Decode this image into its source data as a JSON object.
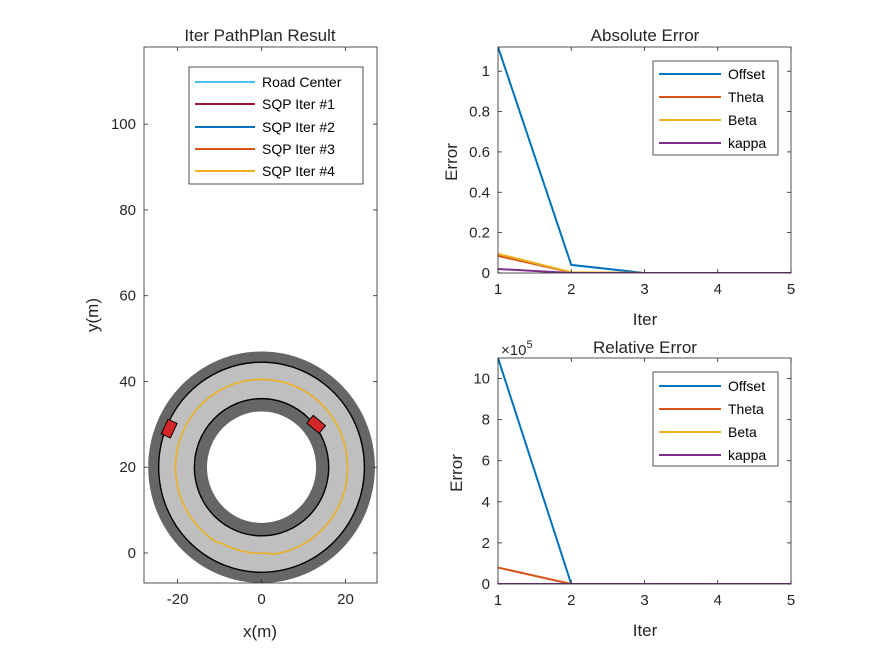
{
  "colors": {
    "road_center": "#4DBEEE",
    "sqp_iter1": "#A2142F",
    "offset": "#0072BD",
    "theta": "#D95319",
    "beta": "#EDB120",
    "kappa": "#7E2F8E",
    "road_outer_ring": "#666666",
    "road_surface": "#BFBFBF",
    "vehicle": "#D62728"
  },
  "chart_data": [
    {
      "type": "line",
      "title": "Iter PathPlan Result",
      "xlabel": "x(m)",
      "ylabel": "y(m)",
      "xlim": [
        -28,
        27.5
      ],
      "ylim": [
        -7,
        118
      ],
      "xticks": [
        -20,
        0,
        20
      ],
      "yticks": [
        0,
        20,
        40,
        60,
        80,
        100
      ],
      "xtick_labels": [
        "-20",
        "0",
        "20"
      ],
      "ytick_labels": [
        "0",
        "20",
        "40",
        "60",
        "80",
        "100"
      ],
      "grid": false,
      "legend": "top-right",
      "legend_labels": [
        "Road Center",
        "SQP Iter #1",
        "SQP Iter #2",
        "SQP Iter #3",
        "SQP Iter #4"
      ],
      "ring_track": {
        "center": [
          0,
          20
        ],
        "outer_wall_radius": 27,
        "outer_lane_radius": 24.5,
        "inner_lane_radius": 16,
        "inner_wall_radius": 13,
        "planned_path_radius": 20.5
      },
      "vehicles": [
        {
          "x": -22,
          "y": 29,
          "heading_deg": 65
        },
        {
          "x": 13,
          "y": 30,
          "heading_deg": -40
        }
      ]
    },
    {
      "type": "line",
      "title": "Absolute Error",
      "xlabel": "Iter",
      "ylabel": "Error",
      "xlim": [
        1,
        5
      ],
      "ylim": [
        0,
        1.12
      ],
      "xticks": [
        1,
        2,
        3,
        4,
        5
      ],
      "yticks": [
        0,
        0.2,
        0.4,
        0.6,
        0.8,
        1
      ],
      "xtick_labels": [
        "1",
        "2",
        "3",
        "4",
        "5"
      ],
      "ytick_labels": [
        "0",
        "0.2",
        "0.4",
        "0.6",
        "0.8",
        "1"
      ],
      "grid": false,
      "legend": "top-right",
      "x": [
        1,
        2,
        3,
        4,
        5
      ],
      "series": [
        {
          "name": "Offset",
          "values": [
            1.12,
            0.04,
            0.0,
            0.0,
            0.0
          ]
        },
        {
          "name": "Theta",
          "values": [
            0.085,
            0.003,
            0.0,
            0.0,
            0.0
          ]
        },
        {
          "name": "Beta",
          "values": [
            0.095,
            0.004,
            0.0,
            0.0,
            0.0
          ]
        },
        {
          "name": "kappa",
          "values": [
            0.02,
            0.0,
            0.0,
            0.0,
            0.0
          ]
        }
      ]
    },
    {
      "type": "line",
      "title": "Relative Error",
      "xlabel": "Iter",
      "ylabel": "Error",
      "exponent_label": "×10",
      "exponent_power": "5",
      "xlim": [
        1,
        5
      ],
      "ylim": [
        0,
        11
      ],
      "xticks": [
        1,
        2,
        3,
        4,
        5
      ],
      "yticks": [
        0,
        2,
        4,
        6,
        8,
        10
      ],
      "xtick_labels": [
        "1",
        "2",
        "3",
        "4",
        "5"
      ],
      "ytick_labels": [
        "0",
        "2",
        "4",
        "6",
        "8",
        "10"
      ],
      "grid": false,
      "legend": "top-right",
      "x": [
        1,
        2,
        3,
        4,
        5
      ],
      "series": [
        {
          "name": "Offset",
          "values": [
            11,
            0,
            0,
            0,
            0
          ]
        },
        {
          "name": "Theta",
          "values": [
            0.8,
            0,
            0,
            0,
            0
          ]
        },
        {
          "name": "Beta",
          "values": [
            0,
            0,
            0,
            0,
            0
          ]
        },
        {
          "name": "kappa",
          "values": [
            0,
            0,
            0,
            0,
            0
          ]
        }
      ]
    }
  ]
}
